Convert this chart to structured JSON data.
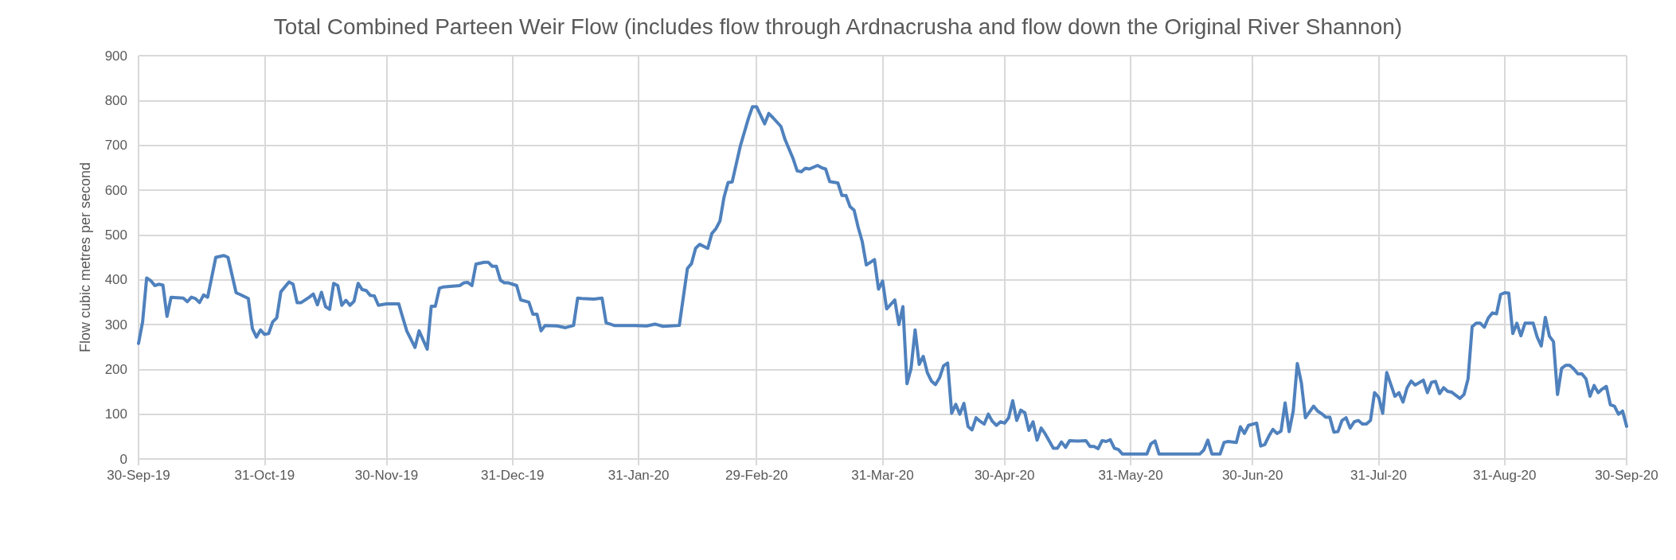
{
  "chart_data": {
    "type": "line",
    "title": "Total Combined Parteen Weir Flow (includes flow through Ardnacrusha and flow down the Original River Shannon)",
    "ylabel": "Flow cubic metres per second",
    "x": [
      "2019-09-30",
      "2019-10-01",
      "2019-10-02",
      "2019-10-03",
      "2019-10-04",
      "2019-10-05",
      "2019-10-06",
      "2019-10-07",
      "2019-10-08",
      "2019-10-11",
      "2019-10-12",
      "2019-10-13",
      "2019-10-14",
      "2019-10-15",
      "2019-10-16",
      "2019-10-17",
      "2019-10-19",
      "2019-10-21",
      "2019-10-22",
      "2019-10-24",
      "2019-10-25",
      "2019-10-27",
      "2019-10-28",
      "2019-10-29",
      "2019-10-30",
      "2019-10-31",
      "2019-11-01",
      "2019-11-02",
      "2019-11-03",
      "2019-11-04",
      "2019-11-06",
      "2019-11-07",
      "2019-11-08",
      "2019-11-09",
      "2019-11-11",
      "2019-11-12",
      "2019-11-13",
      "2019-11-14",
      "2019-11-15",
      "2019-11-16",
      "2019-11-17",
      "2019-11-18",
      "2019-11-19",
      "2019-11-20",
      "2019-11-21",
      "2019-11-22",
      "2019-11-23",
      "2019-11-24",
      "2019-11-25",
      "2019-11-26",
      "2019-11-27",
      "2019-11-28",
      "2019-11-30",
      "2019-12-03",
      "2019-12-04",
      "2019-12-05",
      "2019-12-07",
      "2019-12-08",
      "2019-12-10",
      "2019-12-11",
      "2019-12-12",
      "2019-12-13",
      "2019-12-14",
      "2019-12-18",
      "2019-12-19",
      "2019-12-20",
      "2019-12-21",
      "2019-12-22",
      "2019-12-24",
      "2019-12-25",
      "2019-12-26",
      "2019-12-27",
      "2019-12-28",
      "2019-12-29",
      "2019-12-30",
      "2020-01-01",
      "2020-01-02",
      "2020-01-04",
      "2020-01-05",
      "2020-01-06",
      "2020-01-07",
      "2020-01-08",
      "2020-01-11",
      "2020-01-13",
      "2020-01-15",
      "2020-01-16",
      "2020-01-17",
      "2020-01-20",
      "2020-01-22",
      "2020-01-23",
      "2020-01-25",
      "2020-01-30",
      "2020-02-02",
      "2020-02-04",
      "2020-02-06",
      "2020-02-10",
      "2020-02-12",
      "2020-02-13",
      "2020-02-14",
      "2020-02-15",
      "2020-02-17",
      "2020-02-18",
      "2020-02-19",
      "2020-02-20",
      "2020-02-21",
      "2020-02-22",
      "2020-02-23",
      "2020-02-25",
      "2020-02-27",
      "2020-02-28",
      "2020-02-29",
      "2020-03-02",
      "2020-03-03",
      "2020-03-04",
      "2020-03-06",
      "2020-03-07",
      "2020-03-09",
      "2020-03-10",
      "2020-03-11",
      "2020-03-12",
      "2020-03-13",
      "2020-03-15",
      "2020-03-16",
      "2020-03-17",
      "2020-03-18",
      "2020-03-20",
      "2020-03-21",
      "2020-03-22",
      "2020-03-23",
      "2020-03-24",
      "2020-03-25",
      "2020-03-26",
      "2020-03-27",
      "2020-03-29",
      "2020-03-30",
      "2020-03-31",
      "2020-04-01",
      "2020-04-03",
      "2020-04-04",
      "2020-04-05",
      "2020-04-06",
      "2020-04-07",
      "2020-04-08",
      "2020-04-09",
      "2020-04-10",
      "2020-04-11",
      "2020-04-12",
      "2020-04-13",
      "2020-04-14",
      "2020-04-15",
      "2020-04-16",
      "2020-04-17",
      "2020-04-18",
      "2020-04-19",
      "2020-04-20",
      "2020-04-21",
      "2020-04-22",
      "2020-04-23",
      "2020-04-24",
      "2020-04-25",
      "2020-04-26",
      "2020-04-27",
      "2020-04-28",
      "2020-04-29",
      "2020-04-30",
      "2020-05-01",
      "2020-05-02",
      "2020-05-03",
      "2020-05-04",
      "2020-05-05",
      "2020-05-06",
      "2020-05-07",
      "2020-05-08",
      "2020-05-09",
      "2020-05-10",
      "2020-05-12",
      "2020-05-13",
      "2020-05-14",
      "2020-05-15",
      "2020-05-16",
      "2020-05-18",
      "2020-05-20",
      "2020-05-21",
      "2020-05-22",
      "2020-05-23",
      "2020-05-24",
      "2020-05-25",
      "2020-05-26",
      "2020-05-27",
      "2020-05-28",
      "2020-05-29",
      "2020-06-04",
      "2020-06-05",
      "2020-06-06",
      "2020-06-07",
      "2020-06-17",
      "2020-06-18",
      "2020-06-19",
      "2020-06-20",
      "2020-06-22",
      "2020-06-23",
      "2020-06-24",
      "2020-06-26",
      "2020-06-27",
      "2020-06-28",
      "2020-06-29",
      "2020-07-01",
      "2020-07-02",
      "2020-07-03",
      "2020-07-04",
      "2020-07-05",
      "2020-07-06",
      "2020-07-07",
      "2020-07-08",
      "2020-07-09",
      "2020-07-10",
      "2020-07-11",
      "2020-07-12",
      "2020-07-13",
      "2020-07-15",
      "2020-07-16",
      "2020-07-17",
      "2020-07-18",
      "2020-07-19",
      "2020-07-20",
      "2020-07-21",
      "2020-07-22",
      "2020-07-23",
      "2020-07-24",
      "2020-07-25",
      "2020-07-26",
      "2020-07-27",
      "2020-07-28",
      "2020-07-29",
      "2020-07-30",
      "2020-07-31",
      "2020-08-01",
      "2020-08-02",
      "2020-08-04",
      "2020-08-05",
      "2020-08-06",
      "2020-08-07",
      "2020-08-08",
      "2020-08-09",
      "2020-08-11",
      "2020-08-12",
      "2020-08-13",
      "2020-08-14",
      "2020-08-15",
      "2020-08-16",
      "2020-08-17",
      "2020-08-18",
      "2020-08-20",
      "2020-08-21",
      "2020-08-22",
      "2020-08-23",
      "2020-08-24",
      "2020-08-25",
      "2020-08-26",
      "2020-08-27",
      "2020-08-28",
      "2020-08-29",
      "2020-08-30",
      "2020-08-31",
      "2020-09-01",
      "2020-09-02",
      "2020-09-03",
      "2020-09-04",
      "2020-09-05",
      "2020-09-07",
      "2020-09-08",
      "2020-09-09",
      "2020-09-10",
      "2020-09-11",
      "2020-09-12",
      "2020-09-13",
      "2020-09-14",
      "2020-09-15",
      "2020-09-16",
      "2020-09-17",
      "2020-09-18",
      "2020-09-19",
      "2020-09-20",
      "2020-09-21",
      "2020-09-22",
      "2020-09-23",
      "2020-09-24",
      "2020-09-25",
      "2020-09-26",
      "2020-09-27",
      "2020-09-28",
      "2020-09-29",
      "2020-09-30"
    ],
    "series": [
      {
        "color": "#4f81bd",
        "values": [
          258,
          306,
          404,
          398,
          387,
          390,
          388,
          318,
          361,
          359,
          351,
          361,
          358,
          349,
          366,
          361,
          450,
          454,
          450,
          371,
          367,
          358,
          291,
          272,
          288,
          278,
          280,
          306,
          315,
          373,
          395,
          390,
          349,
          349,
          361,
          368,
          344,
          372,
          340,
          334,
          392,
          387,
          343,
          354,
          343,
          352,
          392,
          378,
          376,
          365,
          364,
          343,
          346,
          346,
          315,
          285,
          249,
          286,
          245,
          341,
          341,
          381,
          384,
          387,
          393,
          394,
          387,
          435,
          439,
          439,
          430,
          430,
          399,
          393,
          393,
          387,
          355,
          350,
          323,
          323,
          286,
          298,
          297,
          293,
          298,
          359,
          358,
          357,
          359,
          304,
          298,
          298,
          297,
          301,
          296,
          298,
          425,
          436,
          470,
          479,
          470,
          503,
          514,
          531,
          584,
          617,
          618,
          698,
          760,
          786,
          786,
          748,
          771,
          762,
          742,
          713,
          670,
          643,
          641,
          649,
          647,
          655,
          650,
          647,
          619,
          616,
          588,
          588,
          563,
          555,
          517,
          485,
          433,
          445,
          379,
          397,
          335,
          355,
          300,
          340,
          168,
          202,
          288,
          211,
          229,
          193,
          174,
          166,
          181,
          208,
          214,
          102,
          122,
          100,
          124,
          73,
          65,
          92,
          84,
          78,
          100,
          84,
          75,
          83,
          80,
          92,
          130,
          86,
          109,
          103,
          64,
          83,
          42,
          69,
          56,
          24,
          24,
          38,
          26,
          41,
          40,
          41,
          28,
          28,
          23,
          41,
          39,
          43,
          24,
          21,
          11,
          11,
          34,
          40,
          11,
          11,
          20,
          42,
          11,
          11,
          37,
          39,
          37,
          72,
          57,
          75,
          80,
          29,
          32,
          51,
          66,
          57,
          62,
          125,
          61,
          107,
          213,
          170,
          92,
          118,
          107,
          101,
          93,
          93,
          60,
          61,
          86,
          92,
          69,
          83,
          86,
          78,
          78,
          86,
          148,
          138,
          102,
          193,
          140,
          148,
          127,
          159,
          174,
          165,
          176,
          148,
          171,
          173,
          146,
          159,
          151,
          149,
          135,
          144,
          179,
          295,
          303,
          303,
          294,
          315,
          326,
          324,
          367,
          371,
          370,
          280,
          303,
          275,
          303,
          303,
          272,
          252,
          316,
          274,
          262,
          144,
          202,
          209,
          209,
          201,
          190,
          190,
          179,
          140,
          164,
          148,
          156,
          162,
          121,
          118,
          100,
          107,
          73
        ]
      }
    ],
    "xlim": [
      "2019-09-30",
      "2020-09-30"
    ],
    "xticks": [
      {
        "value": "2019-09-30",
        "label": "30-Sep-19"
      },
      {
        "value": "2019-10-31",
        "label": "31-Oct-19"
      },
      {
        "value": "2019-11-30",
        "label": "30-Nov-19"
      },
      {
        "value": "2019-12-31",
        "label": "31-Dec-19"
      },
      {
        "value": "2020-01-31",
        "label": "31-Jan-20"
      },
      {
        "value": "2020-02-29",
        "label": "29-Feb-20"
      },
      {
        "value": "2020-03-31",
        "label": "31-Mar-20"
      },
      {
        "value": "2020-04-30",
        "label": "30-Apr-20"
      },
      {
        "value": "2020-05-31",
        "label": "31-May-20"
      },
      {
        "value": "2020-06-30",
        "label": "30-Jun-20"
      },
      {
        "value": "2020-07-31",
        "label": "31-Jul-20"
      },
      {
        "value": "2020-08-31",
        "label": "31-Aug-20"
      },
      {
        "value": "2020-09-30",
        "label": "30-Sep-20"
      }
    ],
    "ylim": [
      0,
      900
    ],
    "yticks": [
      0,
      100,
      200,
      300,
      400,
      500,
      600,
      700,
      800,
      900
    ],
    "grid": true,
    "marker": "none",
    "line_style": "solid"
  }
}
